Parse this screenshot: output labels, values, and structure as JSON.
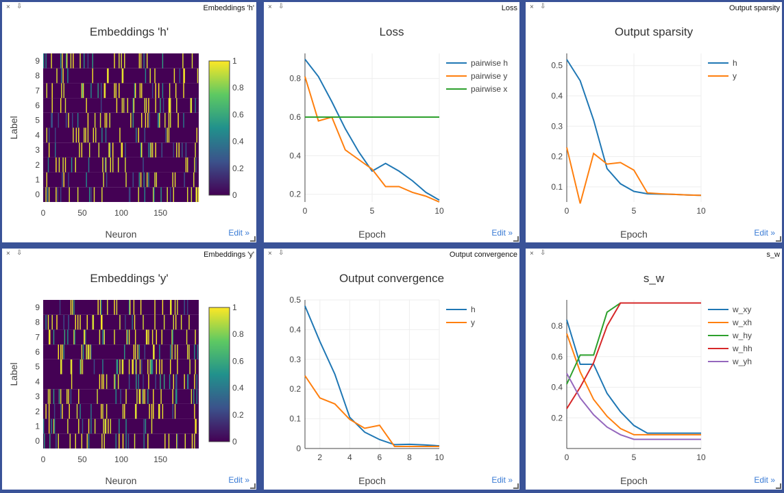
{
  "panes": [
    {
      "id": "emb-h",
      "bar_title": "Embeddings 'h'",
      "title": "Embeddings 'h'",
      "edit": "Edit »",
      "chart_data": {
        "type": "heatmap",
        "title": "Embeddings 'h'",
        "xlabel": "Neuron",
        "ylabel": "Label",
        "x_ticks": [
          "0",
          "50",
          "100",
          "150"
        ],
        "y_ticks": [
          "0",
          "1",
          "2",
          "3",
          "4",
          "5",
          "6",
          "7",
          "8",
          "9"
        ],
        "xlim": [
          0,
          199
        ],
        "rows": 10,
        "cols": 200,
        "colorscale": [
          "#440154",
          "#3b528b",
          "#21918c",
          "#5ec962",
          "#fde725"
        ],
        "colorbar_ticks": [
          "0",
          "0.2",
          "0.4",
          "0.6",
          "0.8",
          "1"
        ],
        "zlim": [
          0,
          1
        ]
      }
    },
    {
      "id": "loss",
      "bar_title": "Loss",
      "title": "Loss",
      "edit": "Edit »",
      "chart_data": {
        "type": "line",
        "title": "Loss",
        "xlabel": "Epoch",
        "ylabel": "",
        "xlim": [
          0,
          10
        ],
        "ylim": [
          0.16,
          0.93
        ],
        "x_ticks": [
          0,
          5,
          10
        ],
        "y_ticks": [
          0.2,
          0.4,
          0.6,
          0.8
        ],
        "series": [
          {
            "name": "pairwise h",
            "color": "#1f77b4",
            "x": [
              0,
              1,
              2,
              3,
              4,
              5,
              6,
              7,
              8,
              9,
              10
            ],
            "y": [
              0.9,
              0.81,
              0.68,
              0.54,
              0.42,
              0.32,
              0.36,
              0.32,
              0.27,
              0.21,
              0.17
            ]
          },
          {
            "name": "pairwise y",
            "color": "#ff7f0e",
            "x": [
              0,
              1,
              2,
              3,
              4,
              5,
              6,
              7,
              8,
              9,
              10
            ],
            "y": [
              0.81,
              0.58,
              0.6,
              0.43,
              0.38,
              0.33,
              0.24,
              0.24,
              0.21,
              0.19,
              0.16
            ]
          },
          {
            "name": "pairwise x",
            "color": "#2ca02c",
            "x": [
              0,
              1,
              2,
              3,
              4,
              5,
              6,
              7,
              8,
              9,
              10
            ],
            "y": [
              0.6,
              0.6,
              0.6,
              0.6,
              0.6,
              0.6,
              0.6,
              0.6,
              0.6,
              0.6,
              0.6
            ]
          }
        ]
      }
    },
    {
      "id": "sparsity",
      "bar_title": "Output sparsity",
      "title": "Output sparsity",
      "edit": "Edit »",
      "chart_data": {
        "type": "line",
        "title": "Output sparsity",
        "xlabel": "Epoch",
        "ylabel": "",
        "xlim": [
          0,
          10
        ],
        "ylim": [
          0.05,
          0.54
        ],
        "x_ticks": [
          0,
          5,
          10
        ],
        "y_ticks": [
          0.1,
          0.2,
          0.3,
          0.4,
          0.5
        ],
        "series": [
          {
            "name": "h",
            "color": "#1f77b4",
            "x": [
              0,
              1,
              2,
              3,
              4,
              5,
              6,
              7,
              8,
              9,
              10
            ],
            "y": [
              0.52,
              0.45,
              0.32,
              0.16,
              0.11,
              0.085,
              0.077,
              0.076,
              0.075,
              0.073,
              0.072
            ]
          },
          {
            "name": "y",
            "color": "#ff7f0e",
            "x": [
              0,
              1,
              2,
              3,
              4,
              5,
              6,
              7,
              8,
              9,
              10
            ],
            "y": [
              0.23,
              0.045,
              0.21,
              0.175,
              0.18,
              0.155,
              0.08,
              0.077,
              0.075,
              0.073,
              0.072
            ]
          }
        ]
      }
    },
    {
      "id": "emb-y",
      "bar_title": "Embeddings 'y'",
      "title": "Embeddings 'y'",
      "edit": "Edit »",
      "chart_data": {
        "type": "heatmap",
        "title": "Embeddings 'y'",
        "xlabel": "Neuron",
        "ylabel": "Label",
        "x_ticks": [
          "0",
          "50",
          "100",
          "150"
        ],
        "y_ticks": [
          "0",
          "1",
          "2",
          "3",
          "4",
          "5",
          "6",
          "7",
          "8",
          "9"
        ],
        "xlim": [
          0,
          199
        ],
        "rows": 10,
        "cols": 200,
        "colorscale": [
          "#440154",
          "#3b528b",
          "#21918c",
          "#5ec962",
          "#fde725"
        ],
        "colorbar_ticks": [
          "0",
          "0.2",
          "0.4",
          "0.6",
          "0.8",
          "1"
        ],
        "zlim": [
          0,
          1
        ]
      }
    },
    {
      "id": "convergence",
      "bar_title": "Output convergence",
      "title": "Output convergence",
      "edit": "Edit »",
      "chart_data": {
        "type": "line",
        "title": "Output convergence",
        "xlabel": "Epoch",
        "ylabel": "",
        "xlim": [
          1,
          10
        ],
        "ylim": [
          0,
          0.5
        ],
        "x_ticks": [
          2,
          4,
          6,
          8,
          10
        ],
        "y_ticks": [
          0,
          0.1,
          0.2,
          0.3,
          0.4,
          0.5
        ],
        "series": [
          {
            "name": "h",
            "color": "#1f77b4",
            "x": [
              1,
              2,
              3,
              4,
              5,
              6,
              7,
              8,
              9,
              10
            ],
            "y": [
              0.48,
              0.36,
              0.25,
              0.105,
              0.055,
              0.03,
              0.013,
              0.014,
              0.012,
              0.009
            ]
          },
          {
            "name": "y",
            "color": "#ff7f0e",
            "x": [
              1,
              2,
              3,
              4,
              5,
              6,
              7,
              8,
              9,
              10
            ],
            "y": [
              0.245,
              0.17,
              0.15,
              0.098,
              0.068,
              0.078,
              0.007,
              0.007,
              0.007,
              0.007
            ]
          }
        ]
      }
    },
    {
      "id": "s-w",
      "bar_title": "s_w",
      "title": "s_w",
      "edit": "Edit »",
      "chart_data": {
        "type": "line",
        "title": "s_w",
        "xlabel": "Epoch",
        "ylabel": "",
        "xlim": [
          0,
          10
        ],
        "ylim": [
          0,
          0.97
        ],
        "x_ticks": [
          0,
          5,
          10
        ],
        "y_ticks": [
          0.2,
          0.4,
          0.6,
          0.8
        ],
        "series": [
          {
            "name": "w_xy",
            "color": "#1f77b4",
            "x": [
              0,
              1,
              2,
              3,
              4,
              5,
              6,
              7,
              8,
              9,
              10
            ],
            "y": [
              0.84,
              0.55,
              0.55,
              0.36,
              0.24,
              0.15,
              0.1,
              0.1,
              0.1,
              0.1,
              0.1
            ]
          },
          {
            "name": "w_xh",
            "color": "#ff7f0e",
            "x": [
              0,
              1,
              2,
              3,
              4,
              5,
              6,
              7,
              8,
              9,
              10
            ],
            "y": [
              0.75,
              0.5,
              0.32,
              0.21,
              0.13,
              0.09,
              0.09,
              0.09,
              0.09,
              0.09,
              0.09
            ]
          },
          {
            "name": "w_hy",
            "color": "#2ca02c",
            "x": [
              0,
              1,
              2,
              3,
              4,
              5,
              6,
              7,
              8,
              9,
              10
            ],
            "y": [
              0.42,
              0.61,
              0.61,
              0.89,
              0.95,
              0.95,
              0.95,
              0.95,
              0.95,
              0.95,
              0.95
            ]
          },
          {
            "name": "w_hh",
            "color": "#d62728",
            "x": [
              0,
              1,
              2,
              3,
              4,
              5,
              6,
              7,
              8,
              9,
              10
            ],
            "y": [
              0.26,
              0.4,
              0.56,
              0.8,
              0.95,
              0.95,
              0.95,
              0.95,
              0.95,
              0.95,
              0.95
            ]
          },
          {
            "name": "w_yh",
            "color": "#9467bd",
            "x": [
              0,
              1,
              2,
              3,
              4,
              5,
              6,
              7,
              8,
              9,
              10
            ],
            "y": [
              0.49,
              0.33,
              0.22,
              0.14,
              0.09,
              0.06,
              0.06,
              0.06,
              0.06,
              0.06,
              0.06
            ]
          }
        ]
      }
    }
  ]
}
